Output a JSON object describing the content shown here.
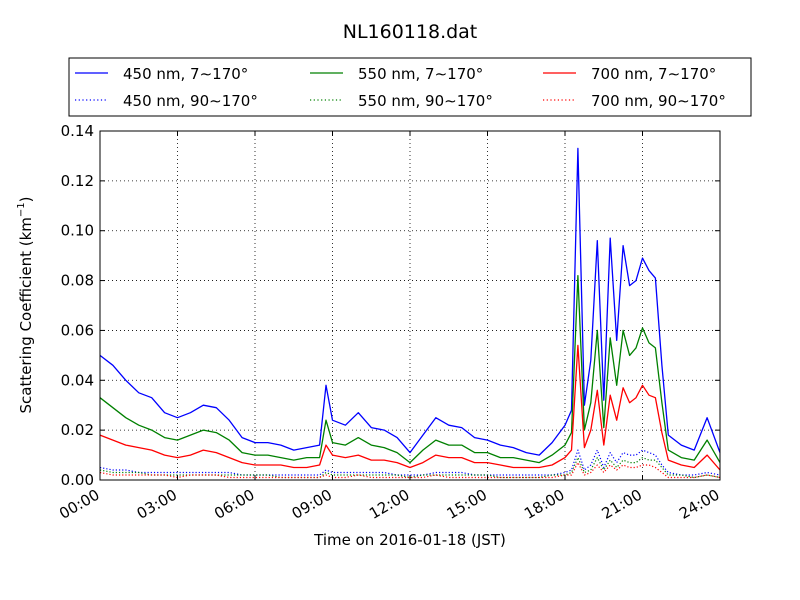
{
  "chart_data": {
    "type": "line",
    "title": "NL160118.dat",
    "xlabel": "Time on 2016-01-18 (JST)",
    "ylabel": "Scattering Coefficient (km",
    "ylabel_sup": "−1",
    "ylabel_end": ")",
    "ylim": [
      0,
      0.14
    ],
    "yticks": [
      0,
      0.02,
      0.04,
      0.06,
      0.08,
      0.1,
      0.12,
      0.14
    ],
    "ytick_labels": [
      "0.00",
      "0.02",
      "0.04",
      "0.06",
      "0.08",
      "0.10",
      "0.12",
      "0.14"
    ],
    "xlim": [
      "00:00",
      "24:00"
    ],
    "xticks": [
      "00:00",
      "03:00",
      "06:00",
      "09:00",
      "12:00",
      "15:00",
      "18:00",
      "21:00",
      "24:00"
    ],
    "grid": true,
    "legend_position": "top",
    "legend": [
      {
        "label": "450 nm, 7∼170°",
        "color": "#0000ff",
        "style": "solid"
      },
      {
        "label": "550 nm, 7∼170°",
        "color": "#008000",
        "style": "solid"
      },
      {
        "label": "700 nm, 7∼170°",
        "color": "#ff0000",
        "style": "solid"
      },
      {
        "label": "450 nm, 90∼170°",
        "color": "#0000ff",
        "style": "dotted"
      },
      {
        "label": "550 nm, 90∼170°",
        "color": "#008000",
        "style": "dotted"
      },
      {
        "label": "700 nm, 90∼170°",
        "color": "#ff0000",
        "style": "dotted"
      }
    ],
    "x": [
      "00:00",
      "00:30",
      "01:00",
      "01:30",
      "02:00",
      "02:30",
      "03:00",
      "03:30",
      "04:00",
      "04:30",
      "05:00",
      "05:30",
      "06:00",
      "06:30",
      "07:00",
      "07:30",
      "08:00",
      "08:30",
      "08:45",
      "09:00",
      "09:30",
      "10:00",
      "10:30",
      "11:00",
      "11:30",
      "12:00",
      "12:30",
      "13:00",
      "13:30",
      "14:00",
      "14:30",
      "15:00",
      "15:30",
      "16:00",
      "16:30",
      "17:00",
      "17:30",
      "18:00",
      "18:15",
      "18:30",
      "18:45",
      "19:00",
      "19:15",
      "19:30",
      "19:45",
      "20:00",
      "20:15",
      "20:30",
      "20:45",
      "21:00",
      "21:15",
      "21:30",
      "21:45",
      "22:00",
      "22:30",
      "23:00",
      "23:30",
      "24:00"
    ],
    "series": [
      {
        "name": "450 nm, 7∼170°",
        "color": "#0000ff",
        "style": "solid",
        "values": [
          0.05,
          0.046,
          0.04,
          0.035,
          0.033,
          0.027,
          0.025,
          0.027,
          0.03,
          0.029,
          0.024,
          0.017,
          0.015,
          0.015,
          0.014,
          0.012,
          0.013,
          0.014,
          0.038,
          0.024,
          0.022,
          0.027,
          0.021,
          0.02,
          0.017,
          0.011,
          0.018,
          0.025,
          0.022,
          0.021,
          0.017,
          0.016,
          0.014,
          0.013,
          0.011,
          0.01,
          0.015,
          0.022,
          0.028,
          0.133,
          0.03,
          0.048,
          0.096,
          0.032,
          0.097,
          0.056,
          0.094,
          0.078,
          0.08,
          0.089,
          0.084,
          0.081,
          0.046,
          0.018,
          0.014,
          0.012,
          0.025,
          0.011
        ]
      },
      {
        "name": "550 nm, 7∼170°",
        "color": "#008000",
        "style": "solid",
        "values": [
          0.033,
          0.029,
          0.025,
          0.022,
          0.02,
          0.017,
          0.016,
          0.018,
          0.02,
          0.019,
          0.016,
          0.011,
          0.01,
          0.01,
          0.009,
          0.008,
          0.009,
          0.009,
          0.024,
          0.015,
          0.014,
          0.017,
          0.014,
          0.013,
          0.011,
          0.007,
          0.012,
          0.016,
          0.014,
          0.014,
          0.011,
          0.011,
          0.009,
          0.009,
          0.008,
          0.007,
          0.01,
          0.014,
          0.019,
          0.082,
          0.02,
          0.031,
          0.06,
          0.021,
          0.057,
          0.038,
          0.06,
          0.05,
          0.053,
          0.061,
          0.055,
          0.053,
          0.031,
          0.012,
          0.009,
          0.008,
          0.016,
          0.007
        ]
      },
      {
        "name": "700 nm, 7∼170°",
        "color": "#ff0000",
        "style": "solid",
        "values": [
          0.018,
          0.016,
          0.014,
          0.013,
          0.012,
          0.01,
          0.009,
          0.01,
          0.012,
          0.011,
          0.009,
          0.007,
          0.006,
          0.006,
          0.006,
          0.005,
          0.005,
          0.006,
          0.014,
          0.01,
          0.009,
          0.01,
          0.008,
          0.008,
          0.007,
          0.005,
          0.007,
          0.01,
          0.009,
          0.009,
          0.007,
          0.007,
          0.006,
          0.005,
          0.005,
          0.005,
          0.006,
          0.009,
          0.012,
          0.054,
          0.013,
          0.02,
          0.036,
          0.014,
          0.034,
          0.024,
          0.037,
          0.031,
          0.033,
          0.038,
          0.034,
          0.033,
          0.019,
          0.008,
          0.006,
          0.005,
          0.01,
          0.004
        ]
      },
      {
        "name": "450 nm, 90∼170°",
        "color": "#0000ff",
        "style": "dotted",
        "values": [
          0.005,
          0.004,
          0.004,
          0.003,
          0.003,
          0.003,
          0.003,
          0.003,
          0.003,
          0.003,
          0.003,
          0.002,
          0.002,
          0.002,
          0.002,
          0.002,
          0.002,
          0.002,
          0.004,
          0.003,
          0.003,
          0.003,
          0.003,
          0.003,
          0.002,
          0.002,
          0.002,
          0.003,
          0.003,
          0.003,
          0.002,
          0.002,
          0.002,
          0.002,
          0.002,
          0.002,
          0.002,
          0.003,
          0.004,
          0.012,
          0.004,
          0.006,
          0.012,
          0.005,
          0.011,
          0.007,
          0.011,
          0.01,
          0.01,
          0.012,
          0.011,
          0.01,
          0.006,
          0.003,
          0.002,
          0.002,
          0.003,
          0.002
        ]
      },
      {
        "name": "550 nm, 90∼170°",
        "color": "#008000",
        "style": "dotted",
        "values": [
          0.004,
          0.003,
          0.003,
          0.003,
          0.002,
          0.002,
          0.002,
          0.002,
          0.002,
          0.002,
          0.002,
          0.002,
          0.002,
          0.002,
          0.001,
          0.001,
          0.001,
          0.001,
          0.003,
          0.002,
          0.002,
          0.002,
          0.002,
          0.002,
          0.002,
          0.001,
          0.002,
          0.002,
          0.002,
          0.002,
          0.002,
          0.002,
          0.001,
          0.001,
          0.001,
          0.001,
          0.002,
          0.002,
          0.003,
          0.009,
          0.003,
          0.004,
          0.009,
          0.004,
          0.008,
          0.005,
          0.008,
          0.007,
          0.007,
          0.009,
          0.008,
          0.008,
          0.005,
          0.002,
          0.002,
          0.001,
          0.002,
          0.001
        ]
      },
      {
        "name": "700 nm, 90∼170°",
        "color": "#ff0000",
        "style": "dotted",
        "values": [
          0.003,
          0.002,
          0.002,
          0.002,
          0.002,
          0.002,
          0.001,
          0.002,
          0.002,
          0.002,
          0.001,
          0.001,
          0.001,
          0.001,
          0.001,
          0.001,
          0.001,
          0.001,
          0.002,
          0.001,
          0.001,
          0.002,
          0.001,
          0.001,
          0.001,
          0.001,
          0.001,
          0.002,
          0.001,
          0.001,
          0.001,
          0.001,
          0.001,
          0.001,
          0.001,
          0.001,
          0.001,
          0.002,
          0.002,
          0.007,
          0.002,
          0.003,
          0.006,
          0.003,
          0.006,
          0.004,
          0.006,
          0.005,
          0.005,
          0.006,
          0.006,
          0.005,
          0.003,
          0.001,
          0.001,
          0.001,
          0.002,
          0.001
        ]
      }
    ]
  }
}
